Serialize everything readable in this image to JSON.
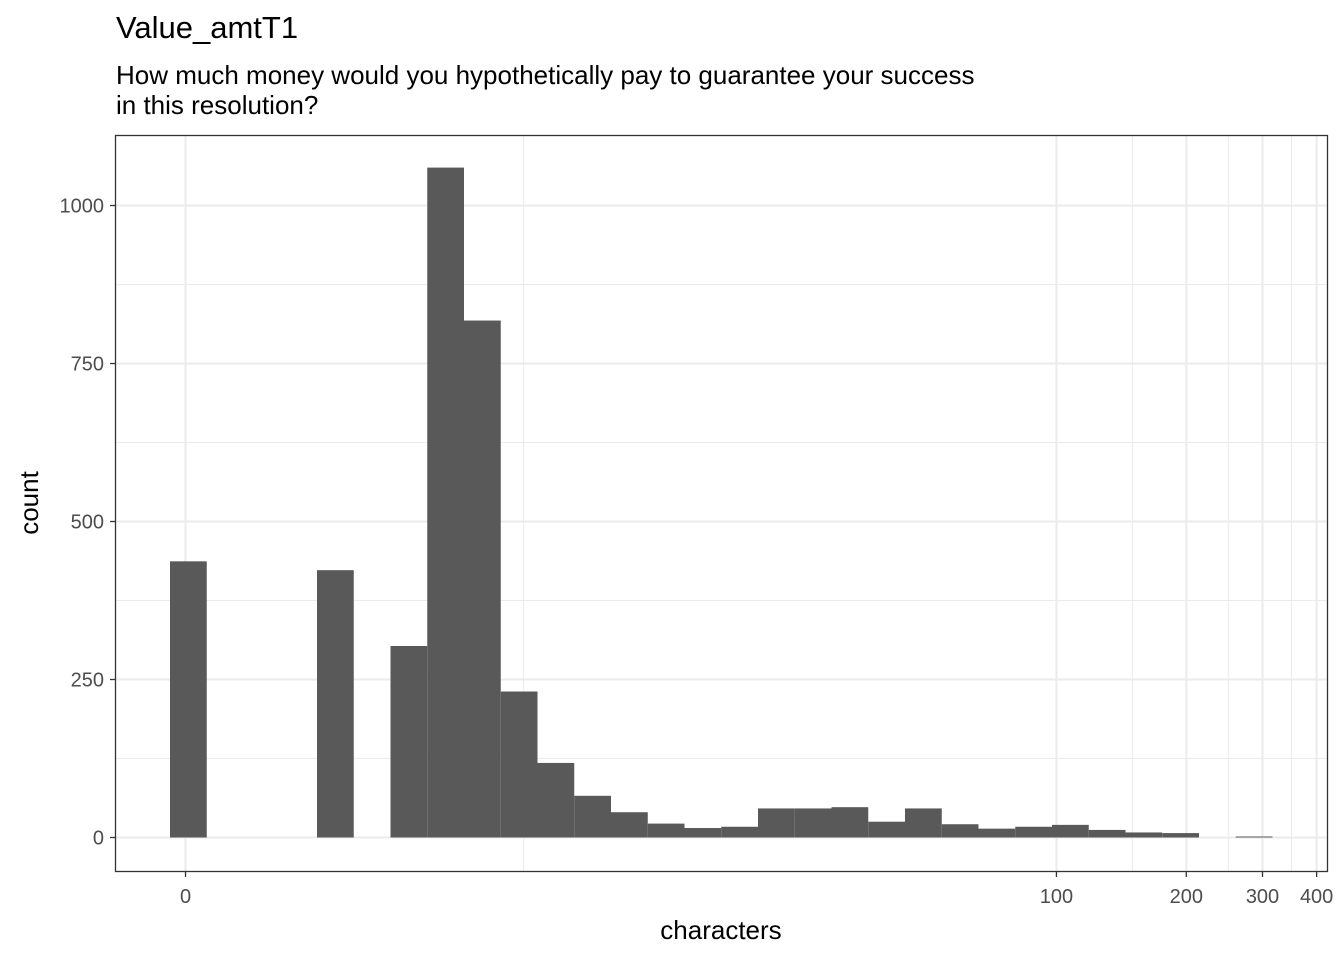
{
  "title": "Value_amtT1",
  "subtitle_lines": [
    "How much money would you hypothetically pay to guarantee your success",
    "in this resolution?"
  ],
  "chart_data": {
    "type": "bar",
    "title": "Value_amtT1",
    "subtitle": "How much money would you hypothetically pay to guarantee your success in this resolution?",
    "xlabel": "characters",
    "ylabel": "count",
    "x_scale": "pseudo-log",
    "x_ticks": [
      0,
      100,
      200,
      300,
      400
    ],
    "x_tick_labels": [
      "0",
      "100",
      "200",
      "300",
      "400"
    ],
    "y_ticks": [
      0,
      250,
      500,
      750,
      1000
    ],
    "y_tick_labels": [
      "0",
      "250",
      "500",
      "750",
      "1000"
    ],
    "ylim": [
      -53,
      1110
    ],
    "grid": true,
    "bar_color": "#595959",
    "bins": [
      {
        "x": 0,
        "count": 437
      },
      {
        "x": 1,
        "count": 0
      },
      {
        "x": 1,
        "count": 0
      },
      {
        "x": 1,
        "count": 0
      },
      {
        "x": 1,
        "count": 423
      },
      {
        "x": 2,
        "count": 0
      },
      {
        "x": 2,
        "count": 303
      },
      {
        "x": 3,
        "count": 1060
      },
      {
        "x": 3,
        "count": 818
      },
      {
        "x": 4,
        "count": 231
      },
      {
        "x": 5,
        "count": 118
      },
      {
        "x": 6,
        "count": 66
      },
      {
        "x": 7,
        "count": 40
      },
      {
        "x": 9,
        "count": 22
      },
      {
        "x": 11,
        "count": 15
      },
      {
        "x": 13,
        "count": 17
      },
      {
        "x": 16,
        "count": 46
      },
      {
        "x": 20,
        "count": 46
      },
      {
        "x": 25,
        "count": 48
      },
      {
        "x": 30,
        "count": 25
      },
      {
        "x": 37,
        "count": 46
      },
      {
        "x": 45,
        "count": 21
      },
      {
        "x": 56,
        "count": 14
      },
      {
        "x": 69,
        "count": 17
      },
      {
        "x": 85,
        "count": 20
      },
      {
        "x": 105,
        "count": 12
      },
      {
        "x": 130,
        "count": 8
      },
      {
        "x": 160,
        "count": 7
      },
      {
        "x": 197,
        "count": 0
      },
      {
        "x": 243,
        "count": 1
      }
    ]
  }
}
